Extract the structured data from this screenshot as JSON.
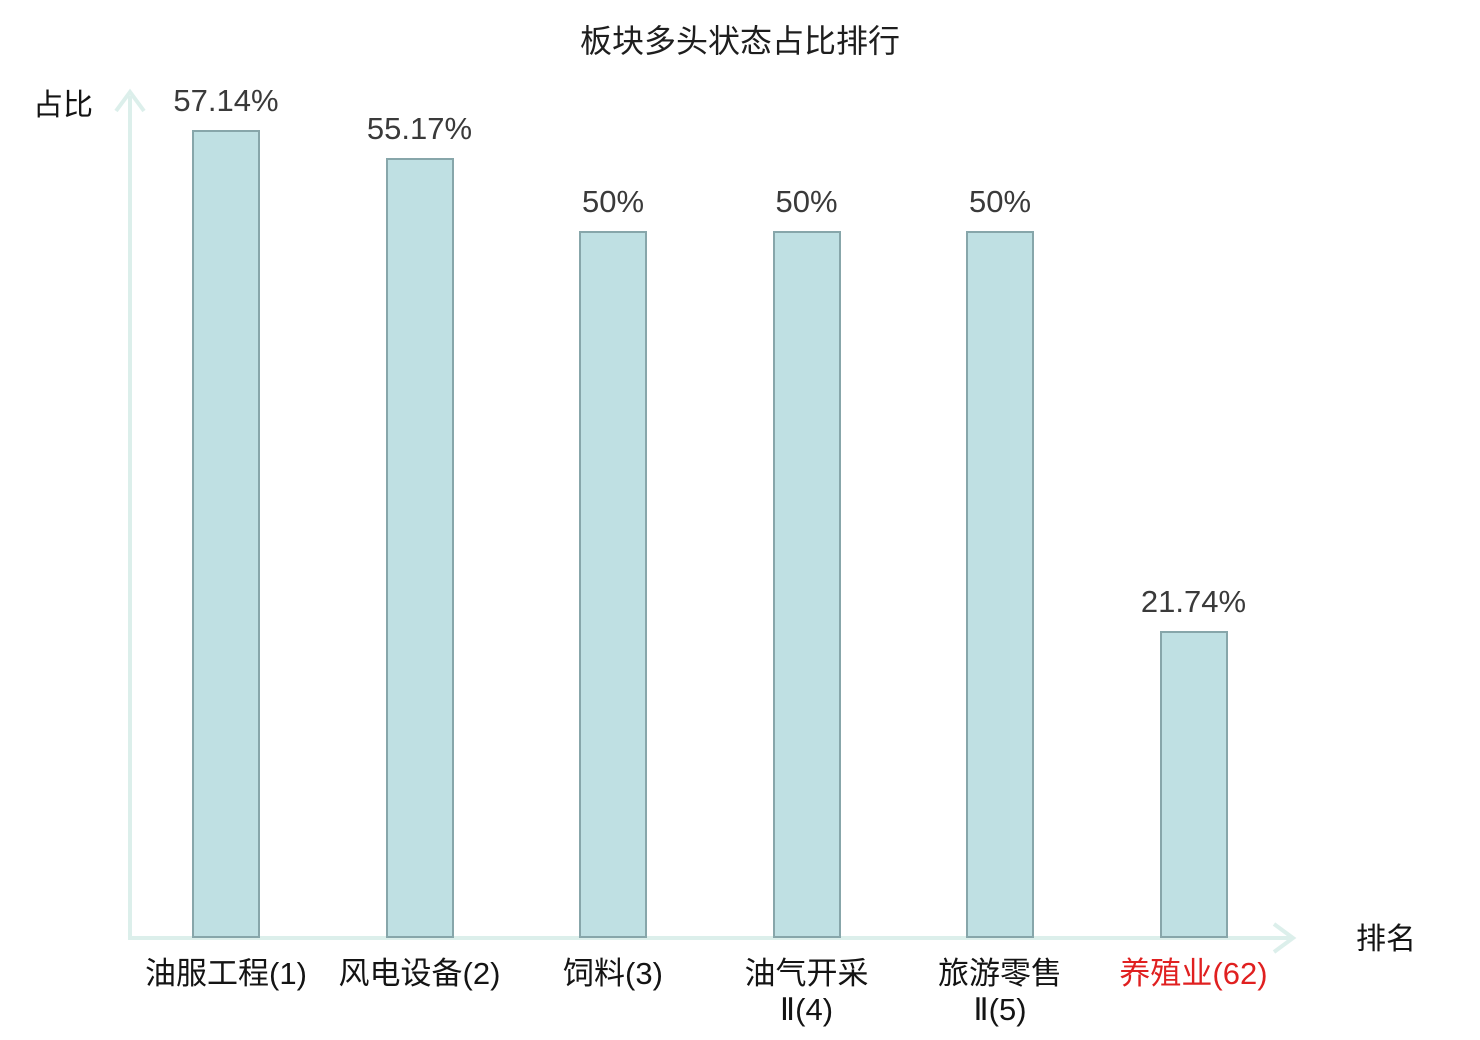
{
  "chart_data": {
    "type": "bar",
    "title": "板块多头状态占比排行",
    "ylabel": "占比",
    "xlabel": "排名",
    "categories": [
      "油服工程(1)",
      "风电设备(2)",
      "饲料(3)",
      "油气开采Ⅱ(4)",
      "旅游零售Ⅱ(5)",
      "养殖业(62)"
    ],
    "category_lines": [
      [
        "油服工程(1)"
      ],
      [
        "风电设备(2)"
      ],
      [
        "饲料(3)"
      ],
      [
        "油气开采",
        "Ⅱ(4)"
      ],
      [
        "旅游零售",
        "Ⅱ(5)"
      ],
      [
        "养殖业(62)"
      ]
    ],
    "values": [
      57.14,
      55.17,
      50,
      50,
      50,
      21.74
    ],
    "value_labels": [
      "57.14%",
      "55.17%",
      "50%",
      "50%",
      "50%",
      "21.74%"
    ],
    "highlighted_category_index": 5,
    "ylim": [
      0,
      60
    ],
    "grid": false,
    "legend": null,
    "colors": {
      "bar_fill": "#bfe0e3",
      "bar_border": "#87a6aa",
      "axis": "#dcefeb",
      "title": "#1e1e1e",
      "value_label": "#3a3a3a",
      "category_label": "#141414",
      "axis_label": "#141414",
      "highlight": "#e02020"
    }
  }
}
